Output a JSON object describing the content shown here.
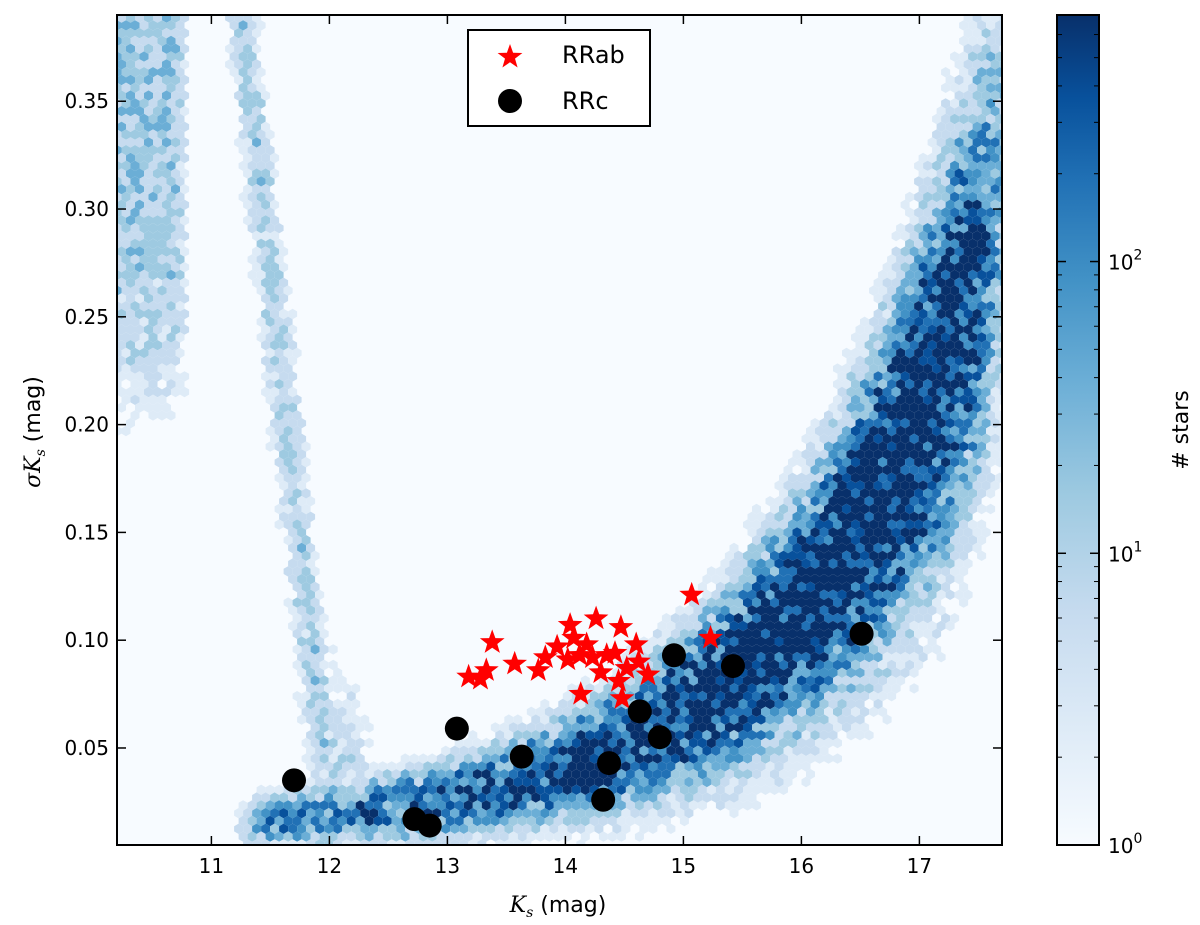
{
  "chart_data": {
    "type": "hexbin-scatter",
    "xlabel_symbol": "K",
    "xlabel_sub": "s",
    "xlabel_unit": " (mag)",
    "ylabel_sigma": "σ",
    "ylabel_symbol": "K",
    "ylabel_sub": "s",
    "ylabel_unit": " (mag)",
    "xlim": [
      10.2,
      17.7
    ],
    "ylim": [
      0.005,
      0.39
    ],
    "xticks": [
      11,
      12,
      13,
      14,
      15,
      16,
      17
    ],
    "yticks": [
      0.05,
      0.1,
      0.15,
      0.2,
      0.25,
      0.3,
      0.35
    ],
    "ytick_labels": [
      "0.05",
      "0.10",
      "0.15",
      "0.20",
      "0.25",
      "0.30",
      "0.35"
    ],
    "colorbar": {
      "label": "# stars",
      "scale": "log",
      "min": 1,
      "max": 700,
      "ticks": [
        {
          "value": 1,
          "base": "10",
          "exp": "0"
        },
        {
          "value": 10,
          "base": "10",
          "exp": "1"
        },
        {
          "value": 100,
          "base": "10",
          "exp": "2"
        }
      ],
      "colors": [
        "#f7fbff",
        "#deebf7",
        "#c6dbef",
        "#9ecae1",
        "#6baed6",
        "#4292c6",
        "#2171b5",
        "#08519c",
        "#08306b"
      ]
    },
    "legend": {
      "position": "upper center",
      "entries": [
        {
          "label": "RRab",
          "marker": "star",
          "color": "#ff0000"
        },
        {
          "label": "RRc",
          "marker": "circle",
          "color": "#000000"
        }
      ]
    },
    "series": [
      {
        "name": "RRab",
        "marker": "star",
        "color": "#ff0000",
        "points": [
          [
            13.18,
            0.083
          ],
          [
            13.28,
            0.082
          ],
          [
            13.33,
            0.086
          ],
          [
            13.38,
            0.099
          ],
          [
            13.57,
            0.089
          ],
          [
            13.77,
            0.086
          ],
          [
            13.83,
            0.092
          ],
          [
            13.93,
            0.097
          ],
          [
            14.02,
            0.091
          ],
          [
            14.04,
            0.107
          ],
          [
            14.07,
            0.101
          ],
          [
            14.12,
            0.093
          ],
          [
            14.13,
            0.075
          ],
          [
            14.18,
            0.098
          ],
          [
            14.23,
            0.092
          ],
          [
            14.26,
            0.11
          ],
          [
            14.3,
            0.085
          ],
          [
            14.35,
            0.093
          ],
          [
            14.42,
            0.094
          ],
          [
            14.45,
            0.081
          ],
          [
            14.47,
            0.106
          ],
          [
            14.48,
            0.073
          ],
          [
            14.52,
            0.087
          ],
          [
            14.6,
            0.098
          ],
          [
            14.62,
            0.09
          ],
          [
            14.7,
            0.084
          ],
          [
            15.07,
            0.121
          ],
          [
            15.23,
            0.101
          ]
        ]
      },
      {
        "name": "RRc",
        "marker": "circle",
        "color": "#000000",
        "points": [
          [
            11.7,
            0.035
          ],
          [
            12.72,
            0.017
          ],
          [
            12.85,
            0.014
          ],
          [
            13.08,
            0.059
          ],
          [
            13.63,
            0.046
          ],
          [
            14.32,
            0.026
          ],
          [
            14.37,
            0.043
          ],
          [
            14.63,
            0.067
          ],
          [
            14.8,
            0.055
          ],
          [
            14.92,
            0.093
          ],
          [
            15.42,
            0.088
          ],
          [
            16.51,
            0.103
          ]
        ]
      }
    ]
  }
}
